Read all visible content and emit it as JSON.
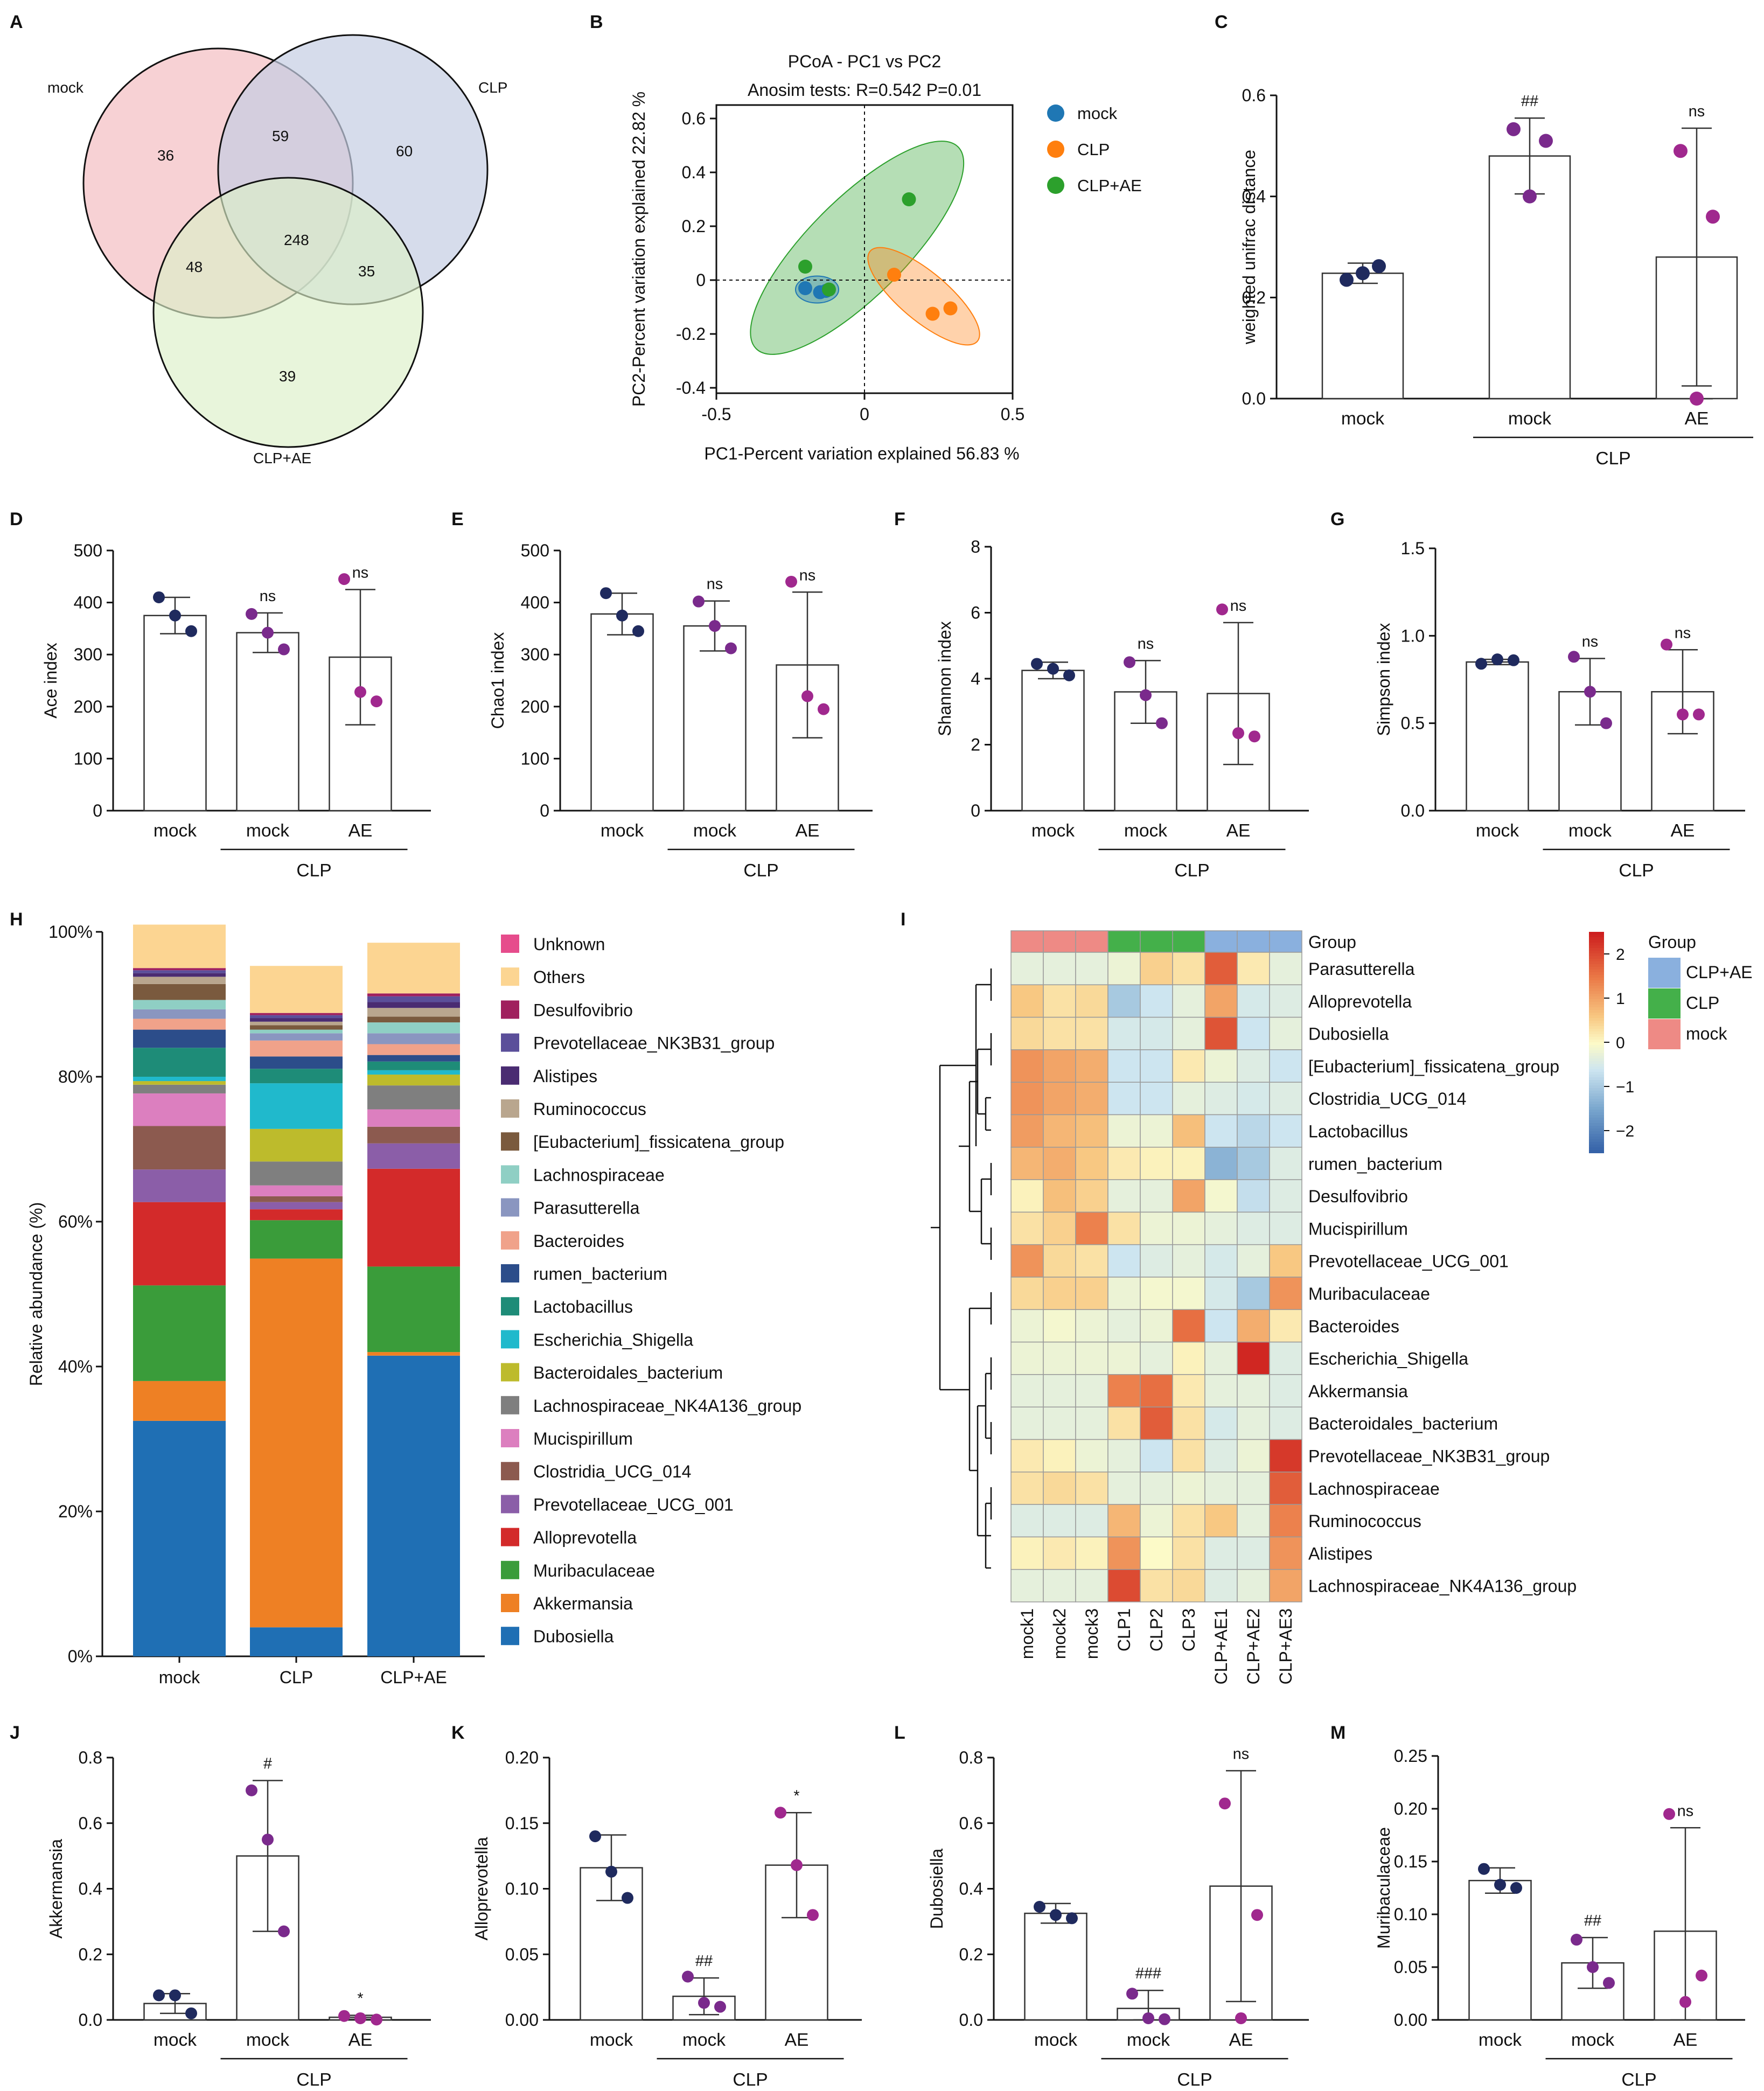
{
  "panel_letters": [
    "A",
    "B",
    "C",
    "D",
    "E",
    "F",
    "G",
    "H",
    "I",
    "J",
    "K",
    "L",
    "M"
  ],
  "group_labels": {
    "mock": "mock",
    "ae": "AE",
    "clp": "CLP",
    "clpae": "CLP+AE"
  },
  "colors": {
    "mock_dot": "#1f2a5e",
    "clp_dot": "#7a2a8c",
    "ae_dot": "#a0288e",
    "venn_mock": "#f4c2c6",
    "venn_clp": "#c5cde3",
    "venn_clpae": "#dcefc8",
    "pcoa_mock": "#1f77b4",
    "pcoa_clp": "#ff7f0e",
    "pcoa_clpae": "#2ca02c"
  },
  "venn": {
    "labels": [
      "mock",
      "CLP",
      "CLP+AE"
    ],
    "regions": {
      "mock_only": "36",
      "mock_clp": "59",
      "clp_only": "60",
      "all": "248",
      "mock_clpae": "48",
      "clp_clpae": "35",
      "clpae_only": "39"
    }
  },
  "chart_data": [
    {
      "panel": "B",
      "type": "scatter",
      "title": "PCoA - PC1 vs PC2",
      "subtitle": "Anosim tests: R=0.542 P=0.01",
      "xlabel": "PC1-Percent variation explained 56.83 %",
      "ylabel": "PC2-Percent variation explained 22.82 %",
      "xlim": [
        -0.5,
        0.5
      ],
      "ylim": [
        -0.42,
        0.65
      ],
      "xticks": [
        "-0.5",
        "0",
        "0.5"
      ],
      "yticks": [
        "-0.4",
        "-0.2",
        "0",
        "0.2",
        "0.4",
        "0.6"
      ],
      "legend": [
        "mock",
        "CLP",
        "CLP+AE"
      ],
      "series": [
        {
          "name": "mock",
          "points": [
            [
              -0.2,
              -0.03
            ],
            [
              -0.15,
              -0.045
            ],
            [
              -0.13,
              -0.04
            ]
          ]
        },
        {
          "name": "CLP",
          "points": [
            [
              0.1,
              0.02
            ],
            [
              0.23,
              -0.125
            ],
            [
              0.29,
              -0.105
            ]
          ]
        },
        {
          "name": "CLP+AE",
          "points": [
            [
              -0.2,
              0.05
            ],
            [
              -0.12,
              -0.035
            ],
            [
              0.15,
              0.3
            ]
          ]
        }
      ]
    },
    {
      "panel": "C",
      "type": "bar",
      "ylabel": "weighted unifrac distance",
      "ylim": [
        0,
        0.6
      ],
      "yticks": [
        "0.0",
        "0.2",
        "0.4",
        "0.6"
      ],
      "categories": [
        "mock",
        "mock",
        "AE"
      ],
      "bracket": "CLP",
      "means": [
        0.248,
        0.48,
        0.28
      ],
      "errors": [
        0.02,
        0.075,
        0.255
      ],
      "points": [
        [
          0.235,
          0.262,
          0.248
        ],
        [
          0.533,
          0.51,
          0.4
        ],
        [
          0.49,
          0.36,
          0.0
        ]
      ],
      "annotations": [
        "",
        "##",
        "ns"
      ]
    },
    {
      "panel": "D",
      "type": "bar",
      "ylabel": "Ace index",
      "ylim": [
        0,
        500
      ],
      "yticks": [
        "0",
        "100",
        "200",
        "300",
        "400",
        "500"
      ],
      "categories": [
        "mock",
        "mock",
        "AE"
      ],
      "bracket": "CLP",
      "means": [
        375,
        342,
        295
      ],
      "errors": [
        35,
        38,
        130
      ],
      "points": [
        [
          410,
          345,
          375
        ],
        [
          378,
          310,
          342
        ],
        [
          445,
          210,
          228
        ]
      ],
      "annotations": [
        "",
        "ns",
        "ns"
      ]
    },
    {
      "panel": "E",
      "type": "bar",
      "ylabel": "Chao1 index",
      "ylim": [
        0,
        500
      ],
      "yticks": [
        "0",
        "100",
        "200",
        "300",
        "400",
        "500"
      ],
      "categories": [
        "mock",
        "mock",
        "AE"
      ],
      "bracket": "CLP",
      "means": [
        378,
        355,
        280
      ],
      "errors": [
        40,
        48,
        140
      ],
      "points": [
        [
          418,
          345,
          375
        ],
        [
          402,
          312,
          355
        ],
        [
          440,
          195,
          220
        ]
      ],
      "annotations": [
        "",
        "ns",
        "ns"
      ]
    },
    {
      "panel": "F",
      "type": "bar",
      "ylabel": "Shannon index",
      "ylim": [
        0,
        8
      ],
      "yticks": [
        "0",
        "2",
        "4",
        "6",
        "8"
      ],
      "categories": [
        "mock",
        "mock",
        "AE"
      ],
      "bracket": "CLP",
      "means": [
        4.25,
        3.6,
        3.55
      ],
      "errors": [
        0.25,
        0.95,
        2.15
      ],
      "points": [
        [
          4.45,
          4.1,
          4.3
        ],
        [
          4.5,
          2.65,
          3.5
        ],
        [
          6.1,
          2.25,
          2.35
        ]
      ],
      "annotations": [
        "",
        "ns",
        "ns"
      ]
    },
    {
      "panel": "G",
      "type": "bar",
      "ylabel": "Simpson index",
      "ylim": [
        0,
        1.5
      ],
      "yticks": [
        "0.0",
        "0.5",
        "1.0",
        "1.5"
      ],
      "categories": [
        "mock",
        "mock",
        "AE"
      ],
      "bracket": "CLP",
      "means": [
        0.85,
        0.68,
        0.68
      ],
      "errors": [
        0.015,
        0.19,
        0.24
      ],
      "points": [
        [
          0.84,
          0.86,
          0.865
        ],
        [
          0.88,
          0.5,
          0.68
        ],
        [
          0.95,
          0.55,
          0.55
        ]
      ],
      "annotations": [
        "",
        "ns",
        "ns"
      ]
    },
    {
      "panel": "H",
      "type": "bar",
      "stacked": true,
      "ylabel": "Relative abundance (%)",
      "yticks": [
        "0%",
        "20%",
        "40%",
        "60%",
        "80%",
        "100%"
      ],
      "categories": [
        "mock",
        "CLP",
        "CLP+AE"
      ],
      "series": [
        {
          "name": "Dubosiella",
          "color": "#1f6fb4",
          "values": [
            32.5,
            4,
            41.5
          ]
        },
        {
          "name": "Akkermansia",
          "color": "#ee8024",
          "values": [
            5.5,
            50.9,
            0.5
          ]
        },
        {
          "name": "Muribaculaceae",
          "color": "#3a9c3a",
          "values": [
            13.2,
            5.3,
            11.8
          ]
        },
        {
          "name": "Alloprevotella",
          "color": "#d32a2a",
          "values": [
            11.5,
            1.5,
            13.5
          ]
        },
        {
          "name": "Prevotellaceae_UCG_001",
          "color": "#8b5ea8",
          "values": [
            4.5,
            1,
            3.5
          ]
        },
        {
          "name": "Clostridia_UCG_014",
          "color": "#8c5a4f",
          "values": [
            6,
            0.8,
            2.3
          ]
        },
        {
          "name": "Mucispirillum",
          "color": "#dc7fbf",
          "values": [
            4.5,
            1.5,
            2.4
          ]
        },
        {
          "name": "Lachnospiraceae_NK4A136_group",
          "color": "#7f7f7f",
          "values": [
            1.2,
            3.3,
            3.3
          ]
        },
        {
          "name": "Bacteroidales_bacterium",
          "color": "#bdbb2c",
          "values": [
            0.5,
            4.5,
            1.5
          ]
        },
        {
          "name": "Escherichia_Shigella",
          "color": "#20b9cc",
          "values": [
            0.6,
            6.3,
            0.6
          ]
        },
        {
          "name": "Lactobacillus",
          "color": "#1e8c78",
          "values": [
            4,
            2,
            1.2
          ]
        },
        {
          "name": "rumen_bacterium",
          "color": "#2c4d8a",
          "values": [
            2.5,
            1.7,
            0.9
          ]
        },
        {
          "name": "Bacteroides",
          "color": "#f0a28a",
          "values": [
            1.5,
            2.2,
            1.5
          ]
        },
        {
          "name": "Parasutterella",
          "color": "#8a96c0",
          "values": [
            1.3,
            1,
            1.5
          ]
        },
        {
          "name": "Lachnospiraceae",
          "color": "#8fcfc4",
          "values": [
            1.3,
            0.5,
            1.5
          ]
        },
        {
          "name": "[Eubacterium]_fissicatena_group",
          "color": "#7a5a3e",
          "values": [
            2.2,
            0.6,
            0.8
          ]
        },
        {
          "name": "Ruminococcus",
          "color": "#b9a68e",
          "values": [
            1,
            0.5,
            1.2
          ]
        },
        {
          "name": "Alistipes",
          "color": "#4a2c72",
          "values": [
            0.5,
            0.5,
            0.8
          ]
        },
        {
          "name": "Prevotellaceae_NK3B31_group",
          "color": "#5b4f9a",
          "values": [
            0.4,
            0.4,
            0.8
          ]
        },
        {
          "name": "Desulfovibrio",
          "color": "#a0205e",
          "values": [
            0.3,
            0.3,
            0.4
          ]
        },
        {
          "name": "Others",
          "color": "#fcd592",
          "values": [
            6,
            6.5,
            7
          ]
        },
        {
          "name": "Unknown",
          "color": "#e64c8c",
          "values": [
            0,
            0,
            0
          ]
        }
      ],
      "legend_order": [
        "Unknown",
        "Others",
        "Desulfovibrio",
        "Prevotellaceae_NK3B31_group",
        "Alistipes",
        "Ruminococcus",
        "[Eubacterium]_fissicatena_group",
        "Lachnospiraceae",
        "Parasutterella",
        "Bacteroides",
        "rumen_bacterium",
        "Lactobacillus",
        "Escherichia_Shigella",
        "Bacteroidales_bacterium",
        "Lachnospiraceae_NK4A136_group",
        "Mucispirillum",
        "Clostridia_UCG_014",
        "Prevotellaceae_UCG_001",
        "Alloprevotella",
        "Muribaculaceae",
        "Akkermansia",
        "Dubosiella"
      ]
    },
    {
      "panel": "I",
      "type": "heatmap",
      "columns": [
        "mock1",
        "mock2",
        "mock3",
        "CLP1",
        "CLP2",
        "CLP3",
        "CLP+AE1",
        "CLP+AE2",
        "CLP+AE3"
      ],
      "group_row_label": "Group",
      "column_groups": [
        "mock",
        "mock",
        "mock",
        "CLP",
        "CLP",
        "CLP",
        "CLP+AE",
        "CLP+AE",
        "CLP+AE"
      ],
      "rows": [
        "Parasutterella",
        "Alloprevotella",
        "Dubosiella",
        "[Eubacterium]_fissicatena_group",
        "Clostridia_UCG_014",
        "Lactobacillus",
        "rumen_bacterium",
        "Desulfovibrio",
        "Mucispirillum",
        "Prevotellaceae_UCG_001",
        "Muribaculaceae",
        "Bacteroides",
        "Escherichia_Shigella",
        "Akkermansia",
        "Bacteroidales_bacterium",
        "Prevotellaceae_NK3B31_group",
        "Lachnospiraceae",
        "Ruminococcus",
        "Alistipes",
        "Lachnospiraceae_NK4A136_group"
      ],
      "values": [
        [
          -0.3,
          -0.3,
          -0.3,
          -0.2,
          0.5,
          0.3,
          1.8,
          0.2,
          -0.3
        ],
        [
          0.6,
          0.3,
          0.4,
          -1.0,
          -0.6,
          -0.3,
          1.0,
          -0.5,
          -0.4
        ],
        [
          0.4,
          0.3,
          0.3,
          -0.5,
          -0.5,
          -0.3,
          1.9,
          -0.6,
          -0.3
        ],
        [
          1.2,
          1.0,
          0.9,
          -0.6,
          -0.6,
          0.2,
          -0.2,
          -0.4,
          -0.6
        ],
        [
          1.2,
          1.0,
          0.9,
          -0.6,
          -0.6,
          -0.3,
          -0.4,
          -0.5,
          -0.4
        ],
        [
          1.1,
          0.8,
          0.7,
          -0.2,
          -0.2,
          0.7,
          -0.6,
          -0.8,
          -0.6
        ],
        [
          0.8,
          0.9,
          0.6,
          0.2,
          0.1,
          0.1,
          -1.3,
          -1.0,
          -0.4
        ],
        [
          0.1,
          0.7,
          0.5,
          -0.3,
          -0.3,
          1.0,
          -0.1,
          -0.7,
          -0.4
        ],
        [
          0.3,
          0.5,
          1.4,
          0.3,
          -0.2,
          -0.2,
          -0.3,
          -0.4,
          -0.4
        ],
        [
          1.2,
          0.4,
          0.3,
          -0.6,
          -0.4,
          -0.3,
          -0.5,
          -0.3,
          0.6
        ],
        [
          0.4,
          0.5,
          0.5,
          -0.2,
          -0.1,
          -0.1,
          -0.5,
          -1.0,
          1.2
        ],
        [
          -0.2,
          -0.1,
          -0.2,
          -0.3,
          -0.2,
          1.6,
          -0.6,
          0.9,
          0.2
        ],
        [
          -0.2,
          -0.2,
          -0.2,
          -0.2,
          -0.3,
          0.1,
          -0.3,
          2.4,
          -0.4
        ],
        [
          -0.3,
          -0.3,
          -0.3,
          1.4,
          1.6,
          0.2,
          -0.3,
          -0.3,
          -0.4
        ],
        [
          -0.3,
          -0.3,
          -0.3,
          0.3,
          1.8,
          0.3,
          -0.5,
          -0.3,
          -0.4
        ],
        [
          0.2,
          0.1,
          -0.2,
          -0.3,
          -0.6,
          0.3,
          -0.4,
          -0.2,
          2.2
        ],
        [
          0.3,
          0.4,
          0.3,
          -0.3,
          -0.3,
          -0.2,
          -0.3,
          -0.3,
          1.8
        ],
        [
          -0.4,
          -0.4,
          -0.4,
          0.8,
          -0.2,
          0.3,
          0.6,
          -0.3,
          1.4
        ],
        [
          0.1,
          0.2,
          0.1,
          1.2,
          0.0,
          0.3,
          -0.4,
          -0.4,
          1.2
        ],
        [
          -0.3,
          -0.3,
          -0.3,
          2.0,
          0.3,
          0.4,
          -0.4,
          -0.3,
          1.0
        ]
      ],
      "scale": {
        "min": -2.5,
        "max": 2.5,
        "ticks": [
          "2",
          "1",
          "0",
          "−1",
          "−2"
        ]
      },
      "group_legend": {
        "title": "Group",
        "items": [
          "CLP+AE",
          "CLP",
          "mock"
        ]
      }
    },
    {
      "panel": "J",
      "type": "bar",
      "ylabel": "Akkermansia",
      "ylim": [
        0,
        0.8
      ],
      "yticks": [
        "0.0",
        "0.2",
        "0.4",
        "0.6",
        "0.8"
      ],
      "categories": [
        "mock",
        "mock",
        "AE"
      ],
      "bracket": "CLP",
      "means": [
        0.05,
        0.5,
        0.008
      ],
      "errors": [
        0.03,
        0.23,
        0.006
      ],
      "points": [
        [
          0.075,
          0.02,
          0.075
        ],
        [
          0.7,
          0.27,
          0.55
        ],
        [
          0.012,
          0.001,
          0.005
        ]
      ],
      "annotations": [
        "",
        "#",
        "*"
      ]
    },
    {
      "panel": "K",
      "type": "bar",
      "ylabel": "Alloprevotella",
      "ylim": [
        0,
        0.2
      ],
      "yticks": [
        "0.00",
        "0.05",
        "0.10",
        "0.15",
        "0.20"
      ],
      "categories": [
        "mock",
        "mock",
        "AE"
      ],
      "bracket": "CLP",
      "means": [
        0.116,
        0.018,
        0.118
      ],
      "errors": [
        0.025,
        0.014,
        0.04
      ],
      "points": [
        [
          0.14,
          0.093,
          0.113
        ],
        [
          0.033,
          0.01,
          0.013
        ],
        [
          0.158,
          0.08,
          0.118
        ]
      ],
      "annotations": [
        "",
        "##",
        "*"
      ]
    },
    {
      "panel": "L",
      "type": "bar",
      "ylabel": "Dubosiella",
      "ylim": [
        0,
        0.8
      ],
      "yticks": [
        "0.0",
        "0.2",
        "0.4",
        "0.6",
        "0.8"
      ],
      "categories": [
        "mock",
        "mock",
        "AE"
      ],
      "bracket": "CLP",
      "means": [
        0.325,
        0.035,
        0.408
      ],
      "errors": [
        0.03,
        0.055,
        0.352
      ],
      "points": [
        [
          0.345,
          0.31,
          0.32
        ],
        [
          0.08,
          0.002,
          0.005
        ],
        [
          0.66,
          0.32,
          0.005
        ]
      ],
      "annotations": [
        "",
        "###",
        "ns"
      ]
    },
    {
      "panel": "M",
      "type": "bar",
      "ylabel": "Muribaculaceae",
      "ylim": [
        0,
        0.25
      ],
      "yticks": [
        "0.00",
        "0.05",
        "0.10",
        "0.15",
        "0.20",
        "0.25"
      ],
      "categories": [
        "mock",
        "mock",
        "AE"
      ],
      "bracket": "CLP",
      "means": [
        0.132,
        0.054,
        0.084
      ],
      "errors": [
        0.012,
        0.024,
        0.098
      ],
      "points": [
        [
          0.143,
          0.125,
          0.128
        ],
        [
          0.076,
          0.035,
          0.05
        ],
        [
          0.195,
          0.042,
          0.017
        ]
      ],
      "annotations": [
        "",
        "##",
        "ns"
      ]
    }
  ]
}
